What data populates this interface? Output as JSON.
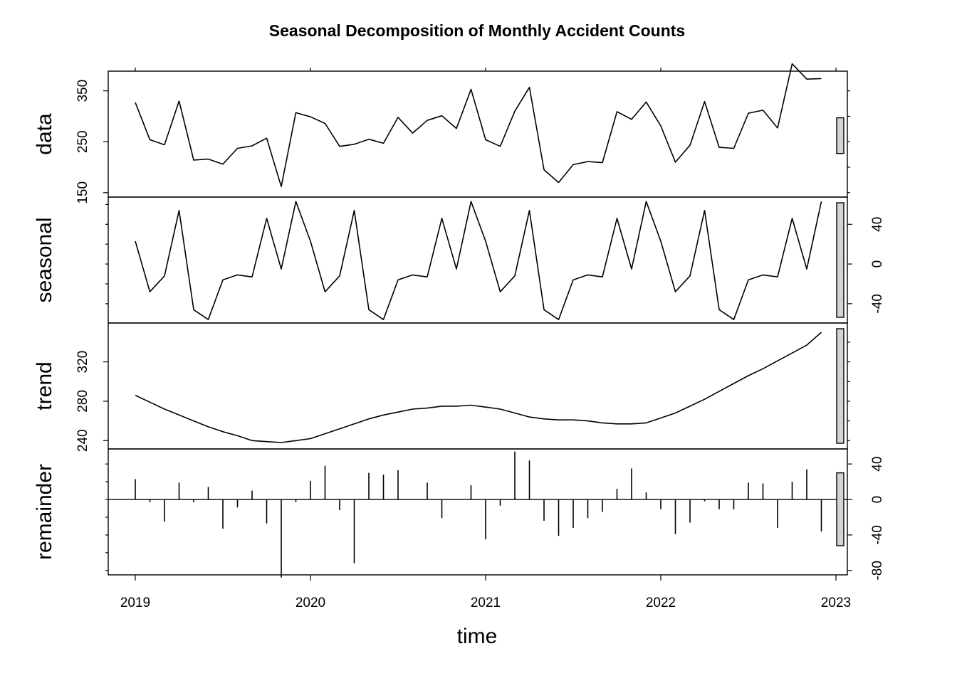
{
  "chart_data": {
    "type": "line",
    "title": "Seasonal Decomposition of Monthly Accident Counts",
    "xlabel": "time",
    "x_start": {
      "year": 2019,
      "month": 1
    },
    "x_ticks": [
      "2019",
      "2020",
      "2021",
      "2022",
      "2023"
    ],
    "xlim": [
      2019,
      2023
    ],
    "panels": [
      {
        "name": "data",
        "ylabel": "data",
        "ylim": [
          150,
          380
        ],
        "yticks": [
          "150",
          "250",
          "350"
        ],
        "tick_side": "left",
        "values": [
          327,
          254,
          244,
          330,
          214,
          216,
          206,
          237,
          242,
          257,
          162,
          307,
          299,
          286,
          241,
          245,
          255,
          247,
          298,
          267,
          292,
          301,
          276,
          353,
          254,
          241,
          310,
          357,
          195,
          170,
          205,
          211,
          209,
          309,
          294,
          328,
          281,
          210,
          243,
          329,
          239,
          237,
          306,
          312,
          277,
          403,
          373,
          374
        ]
      },
      {
        "name": "seasonal",
        "ylabel": "seasonal",
        "ylim": [
          -55,
          63
        ],
        "yticks": [
          "-40",
          "0",
          "40"
        ],
        "tick_side": "right",
        "values": [
          23,
          -28,
          -12,
          54,
          -46,
          -56,
          -16,
          -11,
          -13,
          46,
          -5,
          63,
          23,
          -28,
          -12,
          54,
          -46,
          -56,
          -16,
          -11,
          -13,
          46,
          -5,
          63,
          23,
          -28,
          -12,
          54,
          -46,
          -56,
          -16,
          -11,
          -13,
          46,
          -5,
          63,
          23,
          -28,
          -12,
          54,
          -46,
          -56,
          -16,
          -11,
          -13,
          46,
          -5,
          63
        ]
      },
      {
        "name": "trend",
        "ylabel": "trend",
        "ylim": [
          236,
          355
        ],
        "yticks": [
          "240",
          "280",
          "320"
        ],
        "tick_side": "left",
        "values": [
          286,
          279,
          272,
          266,
          260,
          254,
          249,
          245,
          240,
          239,
          238,
          240,
          242,
          247,
          252,
          257,
          262,
          266,
          269,
          272,
          273,
          275,
          275,
          276,
          274,
          272,
          268,
          264,
          262,
          261,
          261,
          260,
          258,
          257,
          257,
          258,
          263,
          268,
          275,
          282,
          290,
          298,
          306,
          313,
          321,
          329,
          337,
          350
        ]
      },
      {
        "name": "remainder",
        "ylabel": "remainder",
        "ylim": [
          -80,
          52
        ],
        "yticks": [
          "-80",
          "-40",
          "0",
          "40"
        ],
        "tick_side": "right",
        "bars": true,
        "values": [
          23,
          -3,
          -25,
          19,
          -3,
          14,
          -33,
          -9,
          10,
          -27,
          -88,
          -3,
          21,
          38,
          -12,
          -72,
          30,
          28,
          33,
          0,
          19,
          -21,
          0,
          16,
          -45,
          -7,
          54,
          44,
          -24,
          -41,
          -32,
          -21,
          -14,
          12,
          35,
          8,
          -11,
          -39,
          -26,
          -2,
          -11,
          -11,
          19,
          18,
          -32,
          20,
          34,
          -36
        ]
      }
    ]
  }
}
